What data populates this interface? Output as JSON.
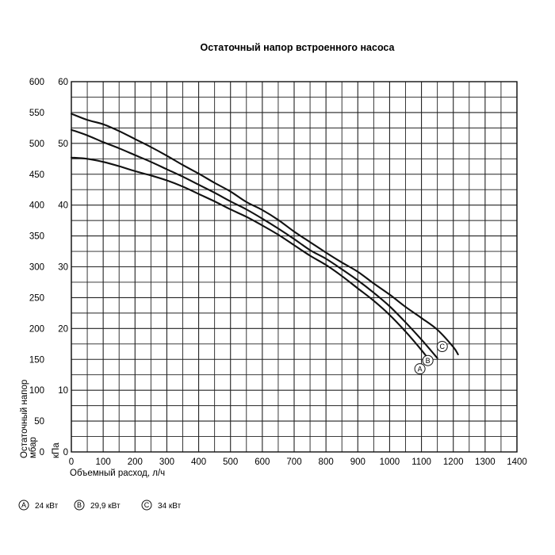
{
  "chart_data": {
    "type": "line",
    "title": "Остаточный напор встроенного насоса",
    "xlabel": "Объемный расход, л/ч",
    "ylabel_left": "Остаточный напор мбар",
    "ylabel_left_line1": "Остаточный напор",
    "ylabel_left_line2": "мбар",
    "ylabel_right": "кПа",
    "xlim": [
      0,
      1400
    ],
    "ylim": [
      0,
      600
    ],
    "ylim_kpa": [
      0,
      60
    ],
    "grid": true,
    "x_ticks": [
      "0",
      "100",
      "200",
      "300",
      "400",
      "500",
      "600",
      "700",
      "800",
      "900",
      "1000",
      "1100",
      "1200",
      "1300",
      "1400"
    ],
    "y_ticks_mbar": [
      "0",
      "50",
      "100",
      "150",
      "200",
      "250",
      "300",
      "350",
      "400",
      "450",
      "500",
      "550",
      "600"
    ],
    "y_ticks_kpa": [
      "0",
      "10",
      "20",
      "30",
      "40",
      "50",
      "60"
    ],
    "series": [
      {
        "name": "A",
        "label": "24 кВт",
        "x": [
          0,
          50,
          100,
          150,
          200,
          250,
          300,
          350,
          400,
          450,
          500,
          550,
          600,
          650,
          700,
          750,
          800,
          850,
          900,
          950,
          1000,
          1050,
          1100,
          1130
        ],
        "y": [
          477,
          475,
          470,
          463,
          455,
          448,
          440,
          430,
          418,
          406,
          393,
          381,
          367,
          352,
          335,
          318,
          303,
          285,
          265,
          245,
          222,
          195,
          165,
          145
        ]
      },
      {
        "name": "B",
        "label": "29,9 кВт",
        "x": [
          0,
          50,
          100,
          150,
          200,
          250,
          300,
          350,
          400,
          450,
          500,
          550,
          600,
          650,
          700,
          750,
          800,
          850,
          900,
          950,
          1000,
          1050,
          1100,
          1150
        ],
        "y": [
          522,
          513,
          502,
          492,
          481,
          470,
          458,
          446,
          433,
          420,
          406,
          393,
          378,
          362,
          345,
          327,
          313,
          296,
          278,
          258,
          236,
          210,
          182,
          152
        ]
      },
      {
        "name": "C",
        "label": "34 кВт",
        "x": [
          0,
          50,
          100,
          150,
          200,
          250,
          300,
          350,
          400,
          450,
          500,
          550,
          600,
          650,
          700,
          750,
          800,
          850,
          900,
          950,
          1000,
          1050,
          1100,
          1150,
          1200,
          1215
        ],
        "y": [
          548,
          538,
          531,
          520,
          507,
          494,
          480,
          465,
          451,
          436,
          422,
          405,
          392,
          376,
          357,
          340,
          323,
          307,
          292,
          273,
          255,
          235,
          217,
          198,
          170,
          158
        ]
      }
    ],
    "legend": [
      {
        "letter": "A",
        "label": "24 кВт"
      },
      {
        "letter": "B",
        "label": "29,9 кВт"
      },
      {
        "letter": "C",
        "label": "34 кВт"
      }
    ]
  }
}
